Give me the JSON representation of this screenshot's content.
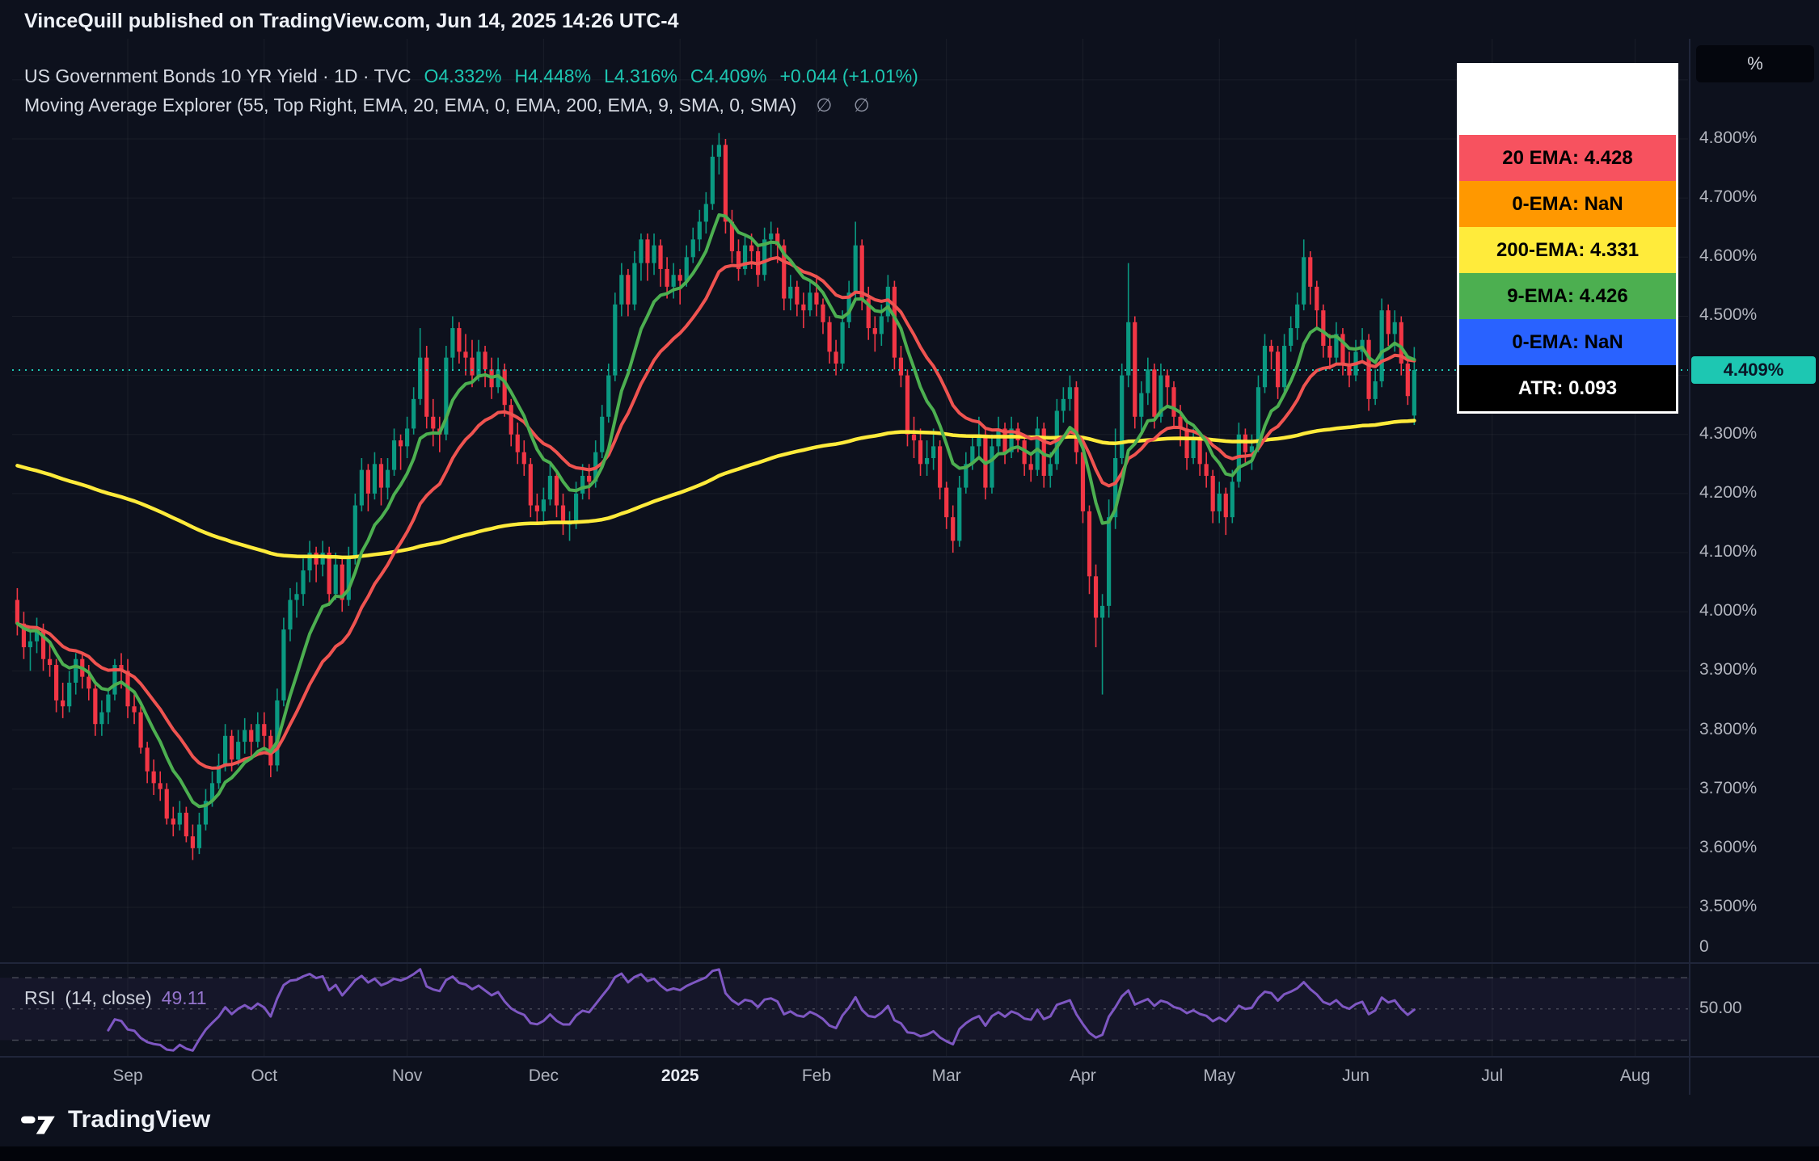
{
  "header": {
    "publisher": "VinceQuill published on TradingView.com, Jun 14, 2025 14:26 UTC-4"
  },
  "chart": {
    "title": "US Government Bonds 10 YR Yield · 1D · TVC",
    "ohlc": {
      "o": "O4.332%",
      "h": "H4.448%",
      "l": "L4.316%",
      "c": "C4.409%",
      "change": "+0.044 (+1.01%)"
    },
    "indicator_title": "Moving Average Explorer (55, Top Right, EMA, 20, EMA, 0, EMA, 200, EMA, 9, SMA, 0, SMA)",
    "empty_flags": "∅ ∅",
    "legend": [
      {
        "label": "20 EMA: 4.428",
        "bg": "#f7525f",
        "fg": "#000000"
      },
      {
        "label": "0-EMA: NaN",
        "bg": "#ff9800",
        "fg": "#000000"
      },
      {
        "label": "200-EMA: 4.331",
        "bg": "#ffeb3b",
        "fg": "#000000"
      },
      {
        "label": "9-EMA: 4.426",
        "bg": "#4caf50",
        "fg": "#000000"
      },
      {
        "label": "0-EMA: NaN",
        "bg": "#2962ff",
        "fg": "#000000"
      },
      {
        "label": "ATR: 0.093",
        "bg": "#000000",
        "fg": "#ffffff"
      }
    ],
    "price_axis": {
      "unit": "%",
      "current": "4.409%",
      "zero_label": "0",
      "ticks": [
        {
          "text": "4.800%",
          "value": 4.8
        },
        {
          "text": "4.700%",
          "value": 4.7
        },
        {
          "text": "4.600%",
          "value": 4.6
        },
        {
          "text": "4.500%",
          "value": 4.5
        },
        {
          "text": "4.300%",
          "value": 4.3
        },
        {
          "text": "4.200%",
          "value": 4.2
        },
        {
          "text": "4.100%",
          "value": 4.1
        },
        {
          "text": "4.000%",
          "value": 4.0
        },
        {
          "text": "3.900%",
          "value": 3.9
        },
        {
          "text": "3.800%",
          "value": 3.8
        },
        {
          "text": "3.700%",
          "value": 3.7
        },
        {
          "text": "3.600%",
          "value": 3.6
        },
        {
          "text": "3.500%",
          "value": 3.5
        }
      ]
    },
    "rsi": {
      "label": "RSI",
      "params": "(14, close)",
      "value": "49.11",
      "level_label": "50.00"
    },
    "time_axis": [
      {
        "label": "Sep",
        "idx": 17
      },
      {
        "label": "Oct",
        "idx": 38
      },
      {
        "label": "Nov",
        "idx": 60
      },
      {
        "label": "Dec",
        "idx": 81
      },
      {
        "label": "2025",
        "idx": 102,
        "major": true
      },
      {
        "label": "Feb",
        "idx": 123
      },
      {
        "label": "Mar",
        "idx": 143
      },
      {
        "label": "Apr",
        "idx": 164
      },
      {
        "label": "May",
        "idx": 185
      },
      {
        "label": "Jun",
        "idx": 206
      },
      {
        "label": "Jul",
        "idx": 227
      },
      {
        "label": "Aug",
        "idx": 249
      }
    ]
  },
  "footer": {
    "brand": "TradingView"
  },
  "chart_data": {
    "type": "candlestick",
    "symbol": "US Government Bonds 10 YR Yield",
    "exchange": "TVC",
    "timeframe": "1D",
    "ylabel": "%",
    "ylim": [
      3.44,
      4.97
    ],
    "open": 4.332,
    "high": 4.448,
    "low": 4.316,
    "close": 4.409,
    "change": 0.044,
    "change_pct": 1.01,
    "atr": 0.093,
    "colors": {
      "accent": "#1dc7b2",
      "up": "#0a9981",
      "down": "#f23645",
      "ema20": "#ef5350",
      "ema200": "#ffeb3b",
      "ema9": "#4caf50",
      "rsi": "#7e57c2",
      "rsi_text": "#9575cd"
    },
    "overlays": [
      {
        "name": "EMA 200",
        "period": 200,
        "color": "#ffeb3b",
        "seed": 4.25,
        "last": 4.331,
        "width": 4.5
      },
      {
        "name": "EMA 20",
        "period": 20,
        "color": "#ef5350",
        "seed": null,
        "last": 4.428,
        "width": 4
      },
      {
        "name": "EMA 9",
        "period": 9,
        "color": "#4caf50",
        "seed": null,
        "last": 4.426,
        "width": 4
      }
    ],
    "rsi": {
      "period": 14,
      "source": "close",
      "last": 49.11
    },
    "candles": [
      [
        4.02,
        4.04,
        3.96,
        3.98
      ],
      [
        3.98,
        4.0,
        3.92,
        3.94
      ],
      [
        3.94,
        3.97,
        3.9,
        3.95
      ],
      [
        3.95,
        3.99,
        3.93,
        3.97
      ],
      [
        3.97,
        3.98,
        3.9,
        3.92
      ],
      [
        3.92,
        3.95,
        3.89,
        3.91
      ],
      [
        3.91,
        3.92,
        3.83,
        3.85
      ],
      [
        3.85,
        3.88,
        3.82,
        3.84
      ],
      [
        3.84,
        3.9,
        3.83,
        3.88
      ],
      [
        3.88,
        3.93,
        3.86,
        3.92
      ],
      [
        3.92,
        3.93,
        3.87,
        3.89
      ],
      [
        3.89,
        3.91,
        3.85,
        3.87
      ],
      [
        3.87,
        3.88,
        3.79,
        3.81
      ],
      [
        3.81,
        3.85,
        3.79,
        3.83
      ],
      [
        3.83,
        3.87,
        3.81,
        3.86
      ],
      [
        3.86,
        3.92,
        3.85,
        3.91
      ],
      [
        3.91,
        3.93,
        3.87,
        3.9
      ],
      [
        3.9,
        3.92,
        3.82,
        3.84
      ],
      [
        3.84,
        3.86,
        3.81,
        3.83
      ],
      [
        3.83,
        3.84,
        3.76,
        3.77
      ],
      [
        3.77,
        3.78,
        3.71,
        3.73
      ],
      [
        3.73,
        3.75,
        3.69,
        3.71
      ],
      [
        3.71,
        3.73,
        3.68,
        3.7
      ],
      [
        3.7,
        3.71,
        3.64,
        3.65
      ],
      [
        3.65,
        3.67,
        3.62,
        3.64
      ],
      [
        3.64,
        3.68,
        3.63,
        3.66
      ],
      [
        3.66,
        3.67,
        3.61,
        3.62
      ],
      [
        3.62,
        3.64,
        3.58,
        3.6
      ],
      [
        3.6,
        3.66,
        3.59,
        3.64
      ],
      [
        3.64,
        3.7,
        3.63,
        3.68
      ],
      [
        3.68,
        3.73,
        3.67,
        3.71
      ],
      [
        3.71,
        3.76,
        3.7,
        3.74
      ],
      [
        3.74,
        3.81,
        3.73,
        3.79
      ],
      [
        3.79,
        3.8,
        3.73,
        3.75
      ],
      [
        3.75,
        3.8,
        3.74,
        3.78
      ],
      [
        3.78,
        3.82,
        3.76,
        3.8
      ],
      [
        3.8,
        3.81,
        3.75,
        3.78
      ],
      [
        3.78,
        3.83,
        3.77,
        3.81
      ],
      [
        3.81,
        3.83,
        3.77,
        3.79
      ],
      [
        3.79,
        3.8,
        3.72,
        3.74
      ],
      [
        3.74,
        3.87,
        3.73,
        3.85
      ],
      [
        3.85,
        3.99,
        3.84,
        3.97
      ],
      [
        3.97,
        4.04,
        3.95,
        4.02
      ],
      [
        4.02,
        4.05,
        3.99,
        4.03
      ],
      [
        4.03,
        4.09,
        4.01,
        4.07
      ],
      [
        4.07,
        4.12,
        4.05,
        4.1
      ],
      [
        4.1,
        4.11,
        4.05,
        4.08
      ],
      [
        4.08,
        4.12,
        4.06,
        4.1
      ],
      [
        4.1,
        4.11,
        4.01,
        4.03
      ],
      [
        4.03,
        4.1,
        4.02,
        4.08
      ],
      [
        4.08,
        4.09,
        4.0,
        4.02
      ],
      [
        4.02,
        4.11,
        4.01,
        4.09
      ],
      [
        4.09,
        4.2,
        4.08,
        4.18
      ],
      [
        4.18,
        4.26,
        4.17,
        4.24
      ],
      [
        4.24,
        4.25,
        4.17,
        4.2
      ],
      [
        4.2,
        4.27,
        4.19,
        4.25
      ],
      [
        4.25,
        4.26,
        4.18,
        4.21
      ],
      [
        4.21,
        4.26,
        4.19,
        4.24
      ],
      [
        4.24,
        4.31,
        4.23,
        4.29
      ],
      [
        4.29,
        4.3,
        4.24,
        4.28
      ],
      [
        4.28,
        4.33,
        4.26,
        4.31
      ],
      [
        4.31,
        4.38,
        4.3,
        4.36
      ],
      [
        4.36,
        4.48,
        4.35,
        4.43
      ],
      [
        4.43,
        4.45,
        4.31,
        4.33
      ],
      [
        4.33,
        4.36,
        4.28,
        4.31
      ],
      [
        4.31,
        4.33,
        4.27,
        4.3
      ],
      [
        4.3,
        4.45,
        4.29,
        4.43
      ],
      [
        4.43,
        4.5,
        4.41,
        4.48
      ],
      [
        4.48,
        4.49,
        4.42,
        4.44
      ],
      [
        4.44,
        4.47,
        4.4,
        4.43
      ],
      [
        4.43,
        4.46,
        4.38,
        4.4
      ],
      [
        4.4,
        4.46,
        4.39,
        4.44
      ],
      [
        4.44,
        4.45,
        4.38,
        4.41
      ],
      [
        4.41,
        4.43,
        4.36,
        4.38
      ],
      [
        4.38,
        4.43,
        4.37,
        4.41
      ],
      [
        4.41,
        4.42,
        4.33,
        4.35
      ],
      [
        4.35,
        4.36,
        4.28,
        4.3
      ],
      [
        4.3,
        4.32,
        4.25,
        4.27
      ],
      [
        4.27,
        4.29,
        4.23,
        4.25
      ],
      [
        4.25,
        4.26,
        4.16,
        4.18
      ],
      [
        4.18,
        4.2,
        4.15,
        4.17
      ],
      [
        4.17,
        4.21,
        4.15,
        4.19
      ],
      [
        4.19,
        4.25,
        4.18,
        4.23
      ],
      [
        4.23,
        4.24,
        4.16,
        4.18
      ],
      [
        4.18,
        4.2,
        4.13,
        4.15
      ],
      [
        4.15,
        4.17,
        4.12,
        4.15
      ],
      [
        4.15,
        4.22,
        4.14,
        4.2
      ],
      [
        4.2,
        4.25,
        4.19,
        4.23
      ],
      [
        4.23,
        4.25,
        4.19,
        4.22
      ],
      [
        4.22,
        4.29,
        4.21,
        4.27
      ],
      [
        4.27,
        4.35,
        4.26,
        4.33
      ],
      [
        4.33,
        4.42,
        4.32,
        4.4
      ],
      [
        4.4,
        4.54,
        4.39,
        4.52
      ],
      [
        4.52,
        4.59,
        4.5,
        4.57
      ],
      [
        4.57,
        4.58,
        4.5,
        4.52
      ],
      [
        4.52,
        4.61,
        4.51,
        4.59
      ],
      [
        4.59,
        4.64,
        4.56,
        4.63
      ],
      [
        4.63,
        4.64,
        4.56,
        4.59
      ],
      [
        4.59,
        4.64,
        4.57,
        4.62
      ],
      [
        4.62,
        4.63,
        4.55,
        4.58
      ],
      [
        4.58,
        4.6,
        4.53,
        4.55
      ],
      [
        4.55,
        4.59,
        4.53,
        4.57
      ],
      [
        4.57,
        4.58,
        4.52,
        4.56
      ],
      [
        4.56,
        4.62,
        4.55,
        4.6
      ],
      [
        4.6,
        4.65,
        4.59,
        4.63
      ],
      [
        4.63,
        4.68,
        4.61,
        4.66
      ],
      [
        4.66,
        4.71,
        4.64,
        4.69
      ],
      [
        4.69,
        4.79,
        4.68,
        4.77
      ],
      [
        4.77,
        4.81,
        4.74,
        4.79
      ],
      [
        4.79,
        4.8,
        4.64,
        4.66
      ],
      [
        4.66,
        4.68,
        4.59,
        4.61
      ],
      [
        4.61,
        4.63,
        4.56,
        4.58
      ],
      [
        4.58,
        4.64,
        4.57,
        4.62
      ],
      [
        4.62,
        4.64,
        4.58,
        4.61
      ],
      [
        4.61,
        4.62,
        4.55,
        4.57
      ],
      [
        4.57,
        4.65,
        4.56,
        4.63
      ],
      [
        4.63,
        4.66,
        4.6,
        4.64
      ],
      [
        4.64,
        4.65,
        4.59,
        4.62
      ],
      [
        4.62,
        4.63,
        4.51,
        4.53
      ],
      [
        4.53,
        4.57,
        4.51,
        4.55
      ],
      [
        4.55,
        4.56,
        4.5,
        4.52
      ],
      [
        4.52,
        4.54,
        4.48,
        4.51
      ],
      [
        4.51,
        4.56,
        4.5,
        4.54
      ],
      [
        4.54,
        4.57,
        4.5,
        4.52
      ],
      [
        4.52,
        4.53,
        4.47,
        4.49
      ],
      [
        4.49,
        4.5,
        4.42,
        4.44
      ],
      [
        4.44,
        4.46,
        4.4,
        4.42
      ],
      [
        4.42,
        4.51,
        4.41,
        4.49
      ],
      [
        4.49,
        4.56,
        4.48,
        4.54
      ],
      [
        4.54,
        4.66,
        4.53,
        4.62
      ],
      [
        4.62,
        4.63,
        4.51,
        4.53
      ],
      [
        4.53,
        4.55,
        4.46,
        4.48
      ],
      [
        4.48,
        4.5,
        4.44,
        4.47
      ],
      [
        4.47,
        4.52,
        4.45,
        4.5
      ],
      [
        4.5,
        4.57,
        4.49,
        4.55
      ],
      [
        4.55,
        4.56,
        4.41,
        4.43
      ],
      [
        4.43,
        4.45,
        4.38,
        4.4
      ],
      [
        4.4,
        4.41,
        4.28,
        4.3
      ],
      [
        4.3,
        4.33,
        4.26,
        4.29
      ],
      [
        4.29,
        4.31,
        4.23,
        4.25
      ],
      [
        4.25,
        4.29,
        4.23,
        4.26
      ],
      [
        4.26,
        4.31,
        4.24,
        4.28
      ],
      [
        4.28,
        4.29,
        4.19,
        4.21
      ],
      [
        4.21,
        4.22,
        4.14,
        4.16
      ],
      [
        4.16,
        4.18,
        4.1,
        4.12
      ],
      [
        4.12,
        4.23,
        4.11,
        4.21
      ],
      [
        4.21,
        4.27,
        4.2,
        4.25
      ],
      [
        4.25,
        4.3,
        4.24,
        4.28
      ],
      [
        4.28,
        4.33,
        4.26,
        4.3
      ],
      [
        4.3,
        4.31,
        4.19,
        4.21
      ],
      [
        4.21,
        4.3,
        4.2,
        4.28
      ],
      [
        4.28,
        4.33,
        4.27,
        4.31
      ],
      [
        4.31,
        4.32,
        4.25,
        4.27
      ],
      [
        4.27,
        4.33,
        4.26,
        4.31
      ],
      [
        4.31,
        4.32,
        4.27,
        4.29
      ],
      [
        4.29,
        4.3,
        4.23,
        4.25
      ],
      [
        4.25,
        4.27,
        4.22,
        4.24
      ],
      [
        4.24,
        4.33,
        4.23,
        4.31
      ],
      [
        4.31,
        4.32,
        4.21,
        4.23
      ],
      [
        4.23,
        4.27,
        4.21,
        4.25
      ],
      [
        4.25,
        4.36,
        4.24,
        4.34
      ],
      [
        4.34,
        4.38,
        4.32,
        4.36
      ],
      [
        4.36,
        4.4,
        4.34,
        4.38
      ],
      [
        4.38,
        4.39,
        4.25,
        4.27
      ],
      [
        4.27,
        4.28,
        4.15,
        4.17
      ],
      [
        4.17,
        4.18,
        4.03,
        4.06
      ],
      [
        4.06,
        4.08,
        3.94,
        3.99
      ],
      [
        3.99,
        4.03,
        3.86,
        4.01
      ],
      [
        4.01,
        4.19,
        3.99,
        4.16
      ],
      [
        4.16,
        4.31,
        4.14,
        4.26
      ],
      [
        4.26,
        4.42,
        4.25,
        4.4
      ],
      [
        4.4,
        4.59,
        4.38,
        4.49
      ],
      [
        4.49,
        4.5,
        4.31,
        4.33
      ],
      [
        4.33,
        4.39,
        4.3,
        4.37
      ],
      [
        4.37,
        4.43,
        4.35,
        4.41
      ],
      [
        4.41,
        4.42,
        4.31,
        4.33
      ],
      [
        4.33,
        4.42,
        4.32,
        4.4
      ],
      [
        4.4,
        4.41,
        4.35,
        4.38
      ],
      [
        4.38,
        4.39,
        4.31,
        4.33
      ],
      [
        4.33,
        4.35,
        4.28,
        4.31
      ],
      [
        4.31,
        4.32,
        4.24,
        4.26
      ],
      [
        4.26,
        4.31,
        4.25,
        4.29
      ],
      [
        4.29,
        4.3,
        4.23,
        4.25
      ],
      [
        4.25,
        4.27,
        4.21,
        4.23
      ],
      [
        4.23,
        4.24,
        4.15,
        4.17
      ],
      [
        4.17,
        4.22,
        4.15,
        4.2
      ],
      [
        4.2,
        4.21,
        4.13,
        4.16
      ],
      [
        4.16,
        4.24,
        4.15,
        4.22
      ],
      [
        4.22,
        4.32,
        4.21,
        4.3
      ],
      [
        4.3,
        4.31,
        4.25,
        4.27
      ],
      [
        4.27,
        4.3,
        4.24,
        4.28
      ],
      [
        4.28,
        4.4,
        4.27,
        4.38
      ],
      [
        4.38,
        4.47,
        4.37,
        4.45
      ],
      [
        4.45,
        4.46,
        4.41,
        4.44
      ],
      [
        4.44,
        4.45,
        4.36,
        4.38
      ],
      [
        4.38,
        4.47,
        4.37,
        4.45
      ],
      [
        4.45,
        4.5,
        4.44,
        4.48
      ],
      [
        4.48,
        4.54,
        4.46,
        4.52
      ],
      [
        4.52,
        4.63,
        4.51,
        4.6
      ],
      [
        4.6,
        4.61,
        4.52,
        4.55
      ],
      [
        4.55,
        4.56,
        4.48,
        4.51
      ],
      [
        4.51,
        4.52,
        4.43,
        4.45
      ],
      [
        4.45,
        4.47,
        4.41,
        4.43
      ],
      [
        4.43,
        4.49,
        4.42,
        4.47
      ],
      [
        4.47,
        4.48,
        4.4,
        4.42
      ],
      [
        4.42,
        4.44,
        4.38,
        4.4
      ],
      [
        4.4,
        4.46,
        4.39,
        4.44
      ],
      [
        4.44,
        4.48,
        4.42,
        4.46
      ],
      [
        4.46,
        4.47,
        4.34,
        4.36
      ],
      [
        4.36,
        4.41,
        4.35,
        4.39
      ],
      [
        4.39,
        4.53,
        4.38,
        4.51
      ],
      [
        4.51,
        4.52,
        4.45,
        4.47
      ],
      [
        4.47,
        4.51,
        4.44,
        4.49
      ],
      [
        4.49,
        4.5,
        4.4,
        4.42
      ],
      [
        4.42,
        4.43,
        4.35,
        4.365
      ],
      [
        4.332,
        4.448,
        4.316,
        4.409
      ]
    ]
  }
}
